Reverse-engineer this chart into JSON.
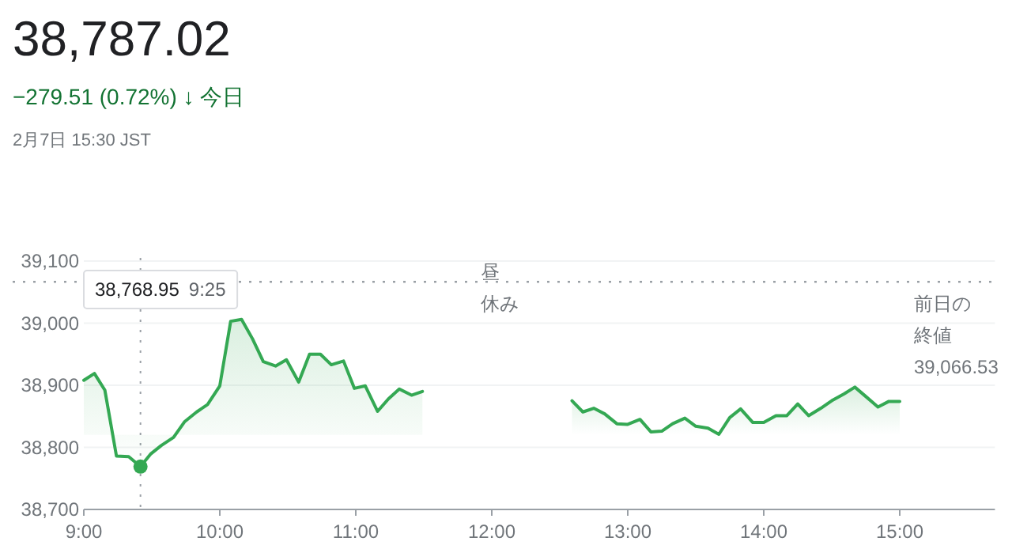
{
  "chart_data": {
    "type": "area",
    "title": "38,787.02",
    "subtitle": "−279.51 (0.72%) ↓ 今日",
    "annotations": [
      "2月7日 15:30 JST",
      "昼休み",
      "38,768.95 9:25"
    ],
    "series": [
      {
        "color": "#34a853",
        "x": [
          9.0,
          9.078,
          9.155,
          9.24,
          9.33,
          9.4167,
          9.49,
          9.57,
          9.66,
          9.74,
          9.83,
          9.91,
          10.0,
          10.08,
          10.16,
          10.24,
          10.32,
          10.41,
          10.49,
          10.58,
          10.66,
          10.74,
          10.82,
          10.91,
          10.99,
          11.07,
          11.16,
          11.24,
          11.32,
          11.41,
          11.49
        ],
        "values": [
          38908,
          38919,
          38892,
          38786,
          38785,
          38769,
          38789,
          38803,
          38816,
          38841,
          38857,
          38869,
          38899,
          39003,
          39006,
          38975,
          38938,
          38931,
          38941,
          38905,
          38950,
          38950,
          38933,
          38939,
          38895,
          38899,
          38858,
          38878,
          38894,
          38884,
          38890
        ]
      },
      {
        "color": "#34a853",
        "x": [
          12.59,
          12.67,
          12.75,
          12.83,
          12.92,
          13.0,
          13.09,
          13.17,
          13.25,
          13.33,
          13.42,
          13.5,
          13.59,
          13.67,
          13.75,
          13.83,
          13.92,
          14.0,
          14.09,
          14.17,
          14.25,
          14.33,
          14.42,
          14.5,
          14.59,
          14.67,
          14.75,
          14.84,
          14.92,
          15.0
        ],
        "values": [
          38875,
          38857,
          38863,
          38854,
          38838,
          38837,
          38845,
          38825,
          38826,
          38838,
          38847,
          38834,
          38831,
          38821,
          38848,
          38862,
          38840,
          38840,
          38851,
          38851,
          38870,
          38851,
          38863,
          38875,
          38886,
          38897,
          38882,
          38865,
          38874,
          38874
        ]
      },
      {
        "type": "scatter",
        "color": "#34a853",
        "x": [
          9.4167
        ],
        "values": [
          38769
        ]
      }
    ],
    "xlim": [
      9,
      15.7
    ],
    "xticks": [
      {
        "value": 9,
        "label": "9:00"
      },
      {
        "value": 10,
        "label": "10:00"
      },
      {
        "value": 11,
        "label": "11:00"
      },
      {
        "value": 12,
        "label": "12:00"
      },
      {
        "value": 13,
        "label": "13:00"
      },
      {
        "value": 14,
        "label": "14:00"
      },
      {
        "value": 15,
        "label": "15:00"
      }
    ],
    "ylim": [
      38700,
      39100
    ],
    "yticks": [
      {
        "value": 38700,
        "label": "38,700"
      },
      {
        "value": 38800,
        "label": "38,800"
      },
      {
        "value": 38900,
        "label": "38,900"
      },
      {
        "value": 39000,
        "label": "39,000"
      },
      {
        "value": 39100,
        "label": "39,100"
      }
    ],
    "ref_lines": [
      {
        "axis": "y",
        "value": 39066.53,
        "label": "前日の終値 39,066.53",
        "line_style": "dotted"
      },
      {
        "axis": "x",
        "value": 9.4167,
        "line_style": "dotted"
      }
    ],
    "grid": "y"
  }
}
